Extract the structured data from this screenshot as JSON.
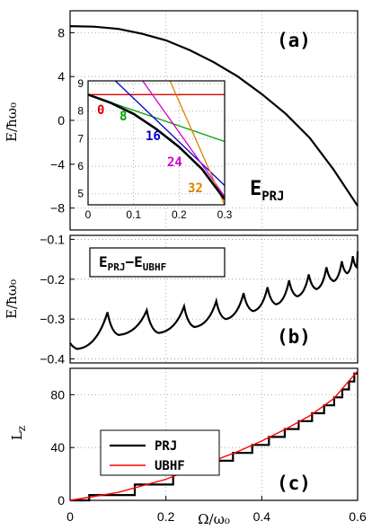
{
  "chart_data": [
    {
      "panel_label": "(a)",
      "type": "line",
      "ylabel": "E/ħω₀",
      "xlim": [
        0,
        0.6
      ],
      "ylim": [
        -10,
        10
      ],
      "yticks": [
        "8",
        "4",
        "0",
        "−4",
        "−8"
      ],
      "annotation": "PRJ",
      "series": [
        {
          "name": "E_PRJ",
          "color": "#000000",
          "x": [
            0,
            0.05,
            0.1,
            0.15,
            0.2,
            0.25,
            0.3,
            0.35,
            0.4,
            0.45,
            0.5,
            0.55,
            0.6
          ],
          "y": [
            8.6,
            8.55,
            8.35,
            7.9,
            7.3,
            6.4,
            5.3,
            4.0,
            2.4,
            0.6,
            -1.6,
            -4.5,
            -7.8
          ]
        }
      ],
      "inset": {
        "type": "line",
        "xlim": [
          0,
          0.3
        ],
        "ylim": [
          4.6,
          9.1
        ],
        "xticks": [
          "0",
          "0.1",
          "0.2",
          "0.3"
        ],
        "yticks": [
          "9",
          "8",
          "7",
          "6",
          "5"
        ],
        "series": [
          {
            "name": "0",
            "color": "#e00000",
            "x": [
              0,
              0.3
            ],
            "y": [
              8.6,
              8.6
            ]
          },
          {
            "name": "8",
            "color": "#00a000",
            "x": [
              0,
              0.3
            ],
            "y": [
              8.6,
              6.9
            ]
          },
          {
            "name": "16",
            "color": "#0000d0",
            "x": [
              0.06,
              0.3
            ],
            "y": [
              9.1,
              5.3
            ]
          },
          {
            "name": "24",
            "color": "#d000d0",
            "x": [
              0.12,
              0.3
            ],
            "y": [
              9.1,
              4.9
            ]
          },
          {
            "name": "32",
            "color": "#e08000",
            "x": [
              0.18,
              0.3
            ],
            "y": [
              9.1,
              4.6
            ]
          },
          {
            "name": "E_PRJ",
            "color": "#000000",
            "x": [
              0,
              0.05,
              0.1,
              0.15,
              0.2,
              0.25,
              0.3
            ],
            "y": [
              8.6,
              8.3,
              7.9,
              7.35,
              6.7,
              5.9,
              4.8
            ]
          }
        ]
      }
    },
    {
      "panel_label": "(b)",
      "type": "line",
      "ylabel": "E/ħω₀",
      "xlim": [
        0,
        0.6
      ],
      "ylim": [
        -0.41,
        -0.09
      ],
      "yticks": [
        "−0.1",
        "−0.2",
        "−0.3",
        "−0.4"
      ],
      "annotation": "PRJ−UBHF",
      "cusps": [
        {
          "x": 0.0,
          "y": -0.36
        },
        {
          "x": 0.015,
          "y": -0.375
        },
        {
          "x": 0.078,
          "y": -0.283
        },
        {
          "x": 0.102,
          "y": -0.34
        },
        {
          "x": 0.16,
          "y": -0.278
        },
        {
          "x": 0.185,
          "y": -0.335
        },
        {
          "x": 0.238,
          "y": -0.268
        },
        {
          "x": 0.26,
          "y": -0.32
        },
        {
          "x": 0.305,
          "y": -0.255
        },
        {
          "x": 0.325,
          "y": -0.3
        },
        {
          "x": 0.362,
          "y": -0.235
        },
        {
          "x": 0.382,
          "y": -0.28
        },
        {
          "x": 0.412,
          "y": -0.22
        },
        {
          "x": 0.43,
          "y": -0.263
        },
        {
          "x": 0.457,
          "y": -0.203
        },
        {
          "x": 0.474,
          "y": -0.243
        },
        {
          "x": 0.498,
          "y": -0.188
        },
        {
          "x": 0.514,
          "y": -0.225
        },
        {
          "x": 0.535,
          "y": -0.17
        },
        {
          "x": 0.55,
          "y": -0.205
        },
        {
          "x": 0.567,
          "y": -0.155
        },
        {
          "x": 0.578,
          "y": -0.185
        },
        {
          "x": 0.59,
          "y": -0.142
        },
        {
          "x": 0.598,
          "y": -0.17
        },
        {
          "x": 0.6,
          "y": -0.13
        }
      ]
    },
    {
      "panel_label": "(c)",
      "type": "line",
      "ylabel": "L",
      "xlabel": "Ω/ω₀",
      "xlim": [
        0,
        0.6
      ],
      "ylim": [
        0,
        100
      ],
      "xticks": [
        "0",
        "0.2",
        "0.4",
        "0.6"
      ],
      "yticks": [
        "0",
        "40",
        "80"
      ],
      "legend": {
        "position": "top-left",
        "entries": [
          "PRJ",
          "UBHF"
        ]
      },
      "series": [
        {
          "name": "PRJ",
          "color": "#000000",
          "kind": "step",
          "steps": [
            [
              0,
              0
            ],
            [
              0.04,
              0
            ],
            [
              0.04,
              4
            ],
            [
              0.135,
              4
            ],
            [
              0.135,
              12
            ],
            [
              0.215,
              12
            ],
            [
              0.215,
              20
            ],
            [
              0.285,
              20
            ],
            [
              0.285,
              30
            ],
            [
              0.34,
              30
            ],
            [
              0.34,
              36
            ],
            [
              0.38,
              36
            ],
            [
              0.38,
              42
            ],
            [
              0.415,
              42
            ],
            [
              0.415,
              48
            ],
            [
              0.448,
              48
            ],
            [
              0.448,
              54
            ],
            [
              0.477,
              54
            ],
            [
              0.477,
              60
            ],
            [
              0.505,
              60
            ],
            [
              0.505,
              66
            ],
            [
              0.53,
              66
            ],
            [
              0.53,
              72
            ],
            [
              0.551,
              72
            ],
            [
              0.551,
              78
            ],
            [
              0.568,
              78
            ],
            [
              0.568,
              84
            ],
            [
              0.582,
              84
            ],
            [
              0.582,
              90
            ],
            [
              0.593,
              90
            ],
            [
              0.593,
              96
            ],
            [
              0.6,
              96
            ]
          ]
        },
        {
          "name": "UBHF",
          "color": "#ff0000",
          "x": [
            0,
            0.1,
            0.2,
            0.3,
            0.35,
            0.4,
            0.45,
            0.5,
            0.55,
            0.6
          ],
          "y": [
            0,
            6,
            16,
            30,
            37,
            45,
            54,
            64,
            77,
            98
          ]
        }
      ]
    }
  ]
}
